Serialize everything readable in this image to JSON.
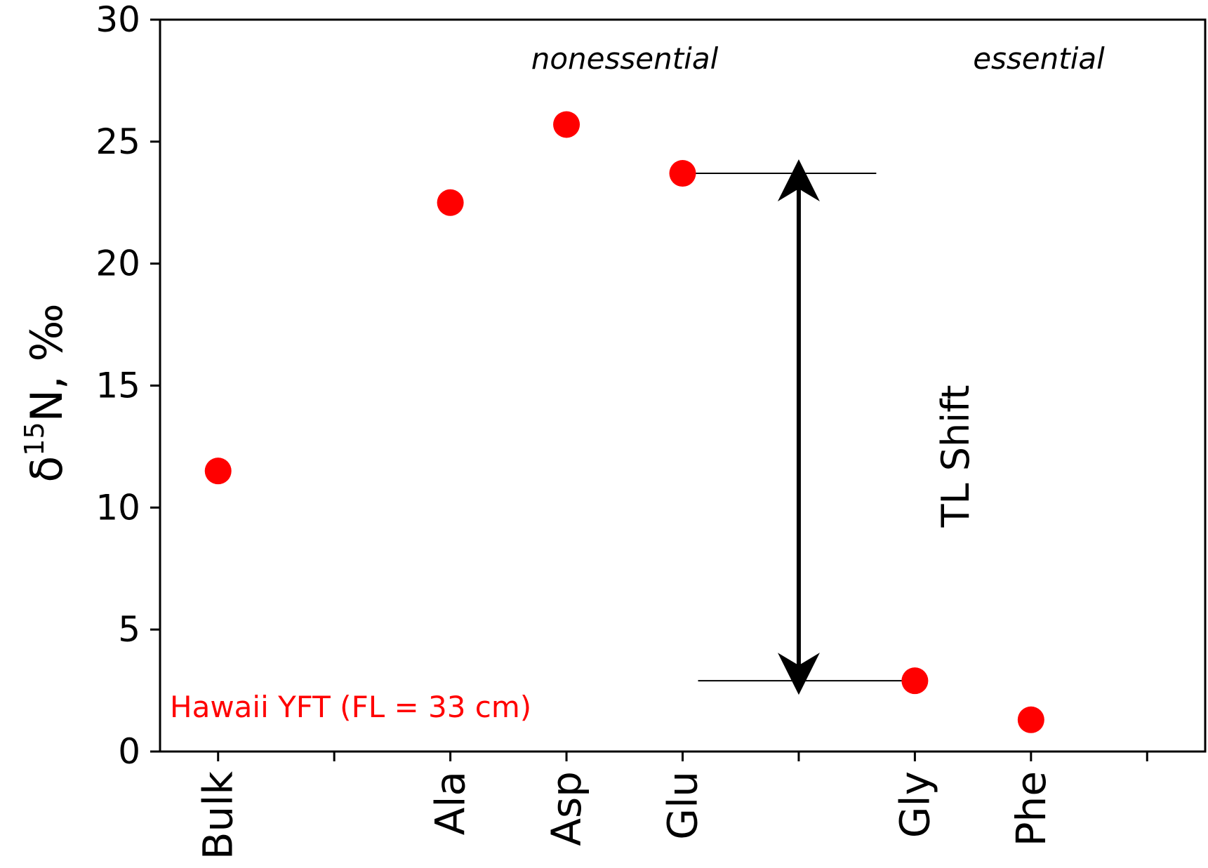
{
  "chart_data": {
    "type": "scatter",
    "categories": [
      "Bulk",
      "",
      "Ala",
      "Asp",
      "Glu",
      "",
      "Gly",
      "Phe",
      ""
    ],
    "y_label": {
      "prefix": "δ",
      "superscript": "15",
      "suffix": "N, ‰"
    },
    "ylim": [
      0,
      30
    ],
    "y_ticks": [
      "0",
      "5",
      "10",
      "15",
      "20",
      "25",
      "30"
    ],
    "grid": false,
    "series": [
      {
        "points": [
          {
            "category": "Bulk",
            "y": 11.5
          },
          {
            "category": "Ala",
            "y": 22.5
          },
          {
            "category": "Asp",
            "y": 25.7
          },
          {
            "category": "Glu",
            "y": 23.7
          },
          {
            "category": "Gly",
            "y": 2.9
          },
          {
            "category": "Phe",
            "y": 1.3
          }
        ]
      }
    ],
    "annotations": {
      "nonessential": "nonessential",
      "essential": "essential",
      "shift_label": "TL Shift",
      "shift_from": 23.7,
      "shift_to": 2.9,
      "note": "Hawaii YFT (FL = 33 cm)"
    },
    "colors": {
      "marker": "#ff0000",
      "note": "#ff0000",
      "axis": "#000000"
    }
  }
}
